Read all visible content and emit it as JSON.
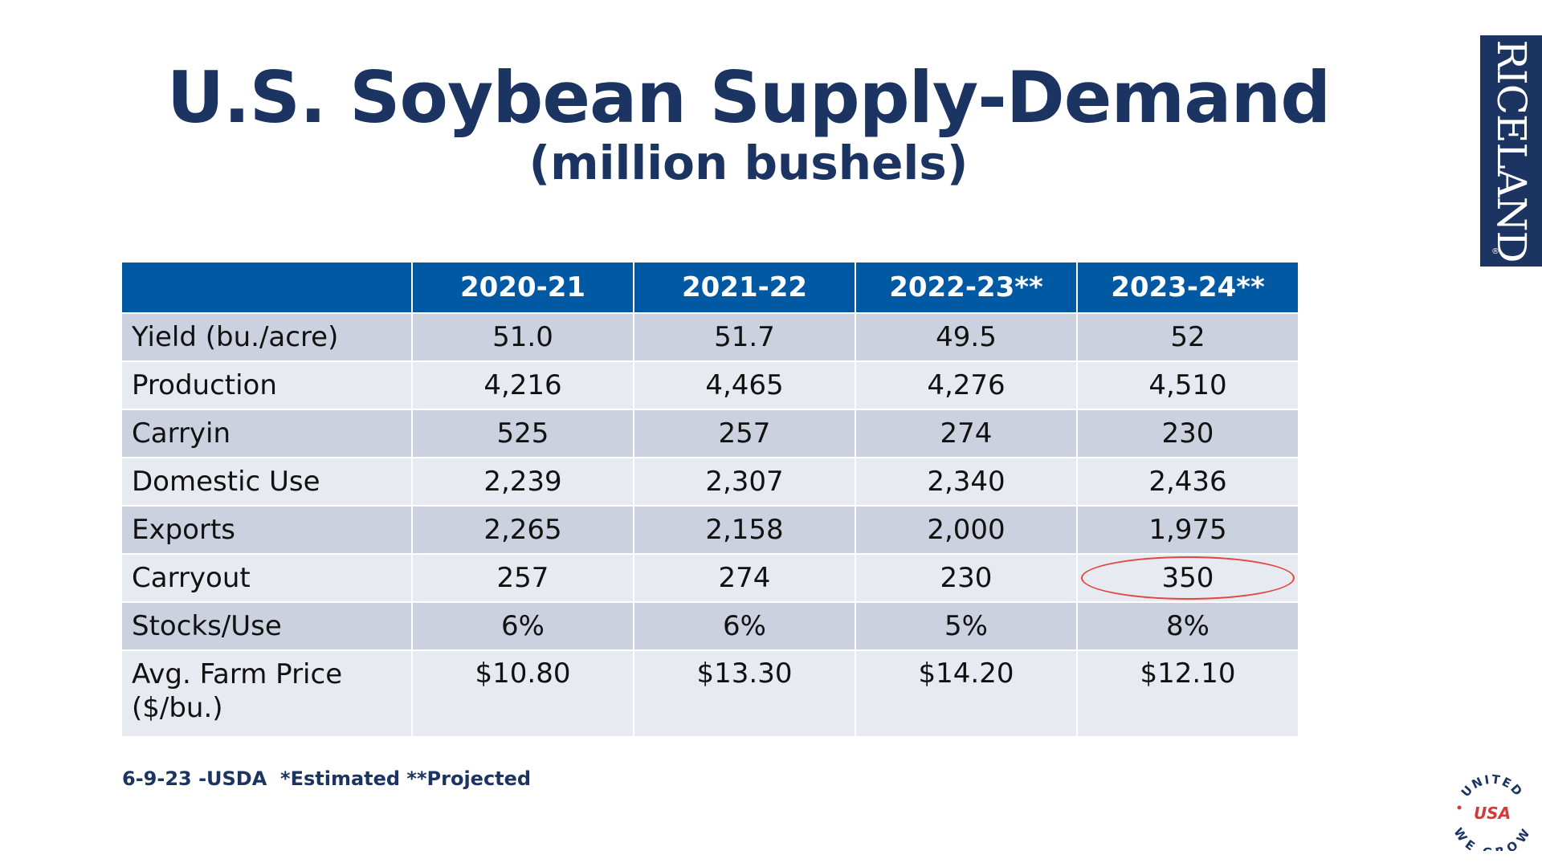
{
  "slide": {
    "title": "U.S. Soybean Supply-Demand",
    "subtitle": "(million bushels)",
    "brand": "RICELAND",
    "brand_reg": "®",
    "footnote": "6-9-23 -USDA  *Estimated **Projected",
    "badge": {
      "top_text": "UNITED",
      "center_text": "USA",
      "bottom_text": "WE GROW"
    }
  },
  "table": {
    "headers": [
      "",
      "2020-21",
      "2021-22",
      "2022-23**",
      "2023-24**"
    ],
    "rows": [
      {
        "label": "Yield (bu./acre)",
        "values": [
          "51.0",
          "51.7",
          "49.5",
          "52"
        ]
      },
      {
        "label": "Production",
        "values": [
          "4,216",
          "4,465",
          "4,276",
          "4,510"
        ]
      },
      {
        "label": "Carryin",
        "values": [
          "525",
          "257",
          "274",
          "230"
        ]
      },
      {
        "label": "Domestic Use",
        "values": [
          "2,239",
          "2,307",
          "2,340",
          "2,436"
        ]
      },
      {
        "label": "Exports",
        "values": [
          "2,265",
          "2,158",
          "2,000",
          "1,975"
        ]
      },
      {
        "label": "Carryout",
        "values": [
          "257",
          "274",
          "230",
          "350"
        ]
      },
      {
        "label": "Stocks/Use",
        "values": [
          "6%",
          "6%",
          "5%",
          "8%"
        ]
      },
      {
        "label_line1": "Avg. Farm Price",
        "label_line2": "($/bu.)",
        "values": [
          "$10.80",
          "$13.30",
          "$14.20",
          "$12.10"
        ]
      }
    ],
    "highlight_color": "#e0453e",
    "header_color": "#0159a4"
  }
}
